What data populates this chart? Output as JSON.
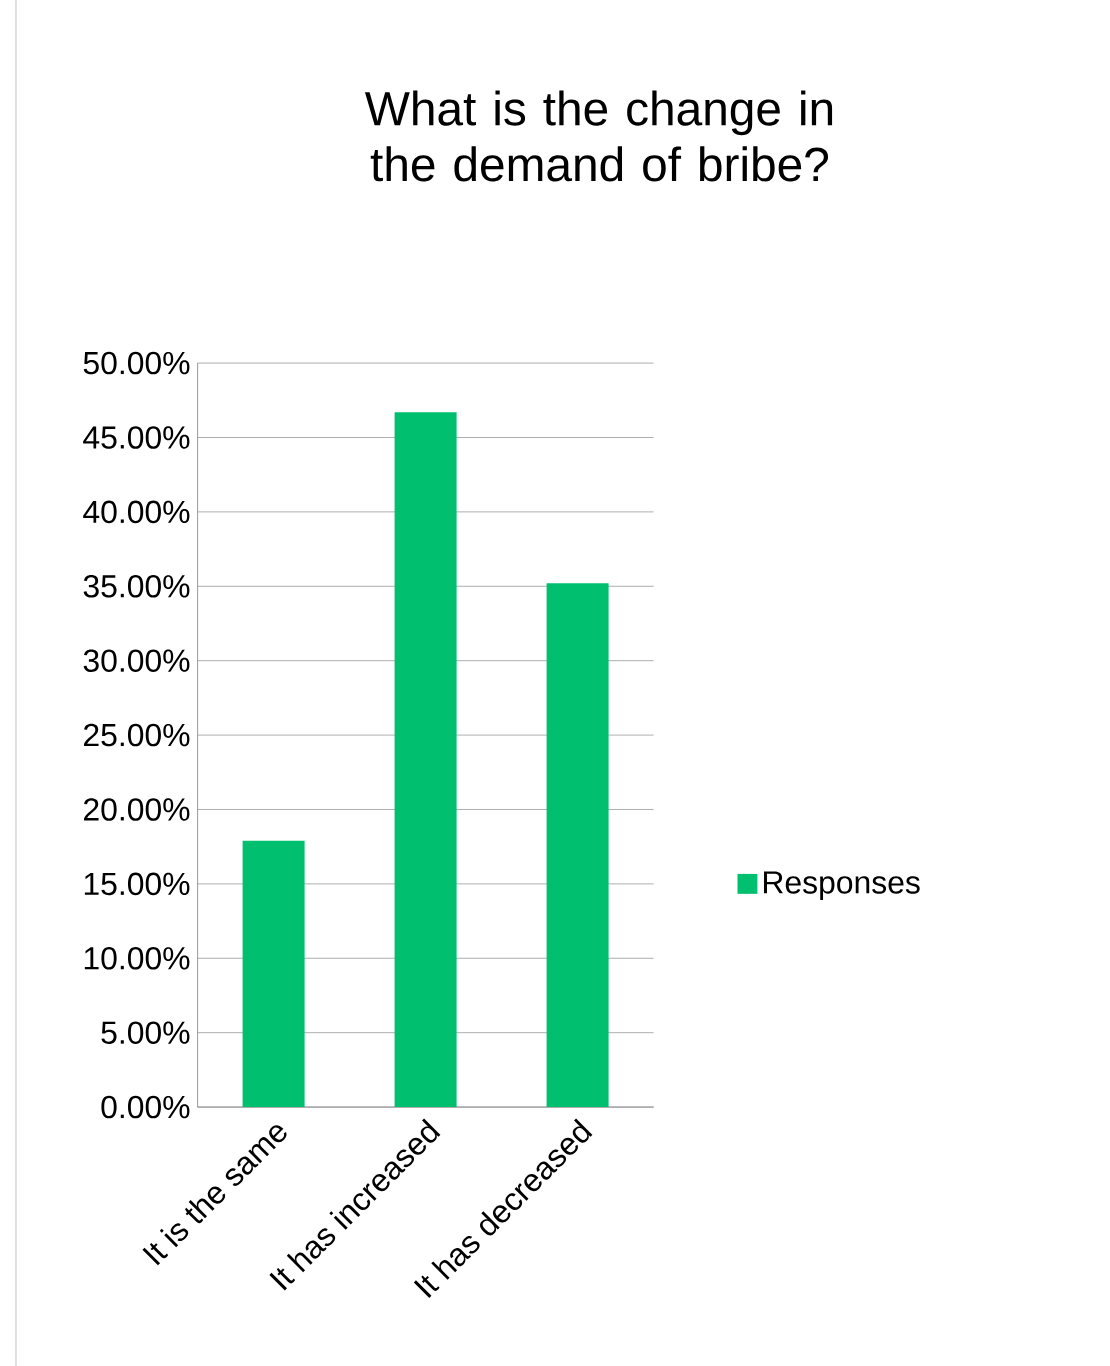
{
  "chart_data": {
    "type": "bar",
    "title": "What is the change in the demand of bribe?",
    "categories": [
      "It is the same",
      "It has increased",
      "It has decreased"
    ],
    "series": [
      {
        "name": "Responses",
        "color": "#00bf6f",
        "values": [
          17.9,
          46.7,
          35.2
        ]
      }
    ],
    "ylim": [
      0,
      50
    ],
    "yticks": [
      {
        "value": 0,
        "label": "0.00%"
      },
      {
        "value": 5,
        "label": "5.00%"
      },
      {
        "value": 10,
        "label": "10.00%"
      },
      {
        "value": 15,
        "label": "15.00%"
      },
      {
        "value": 20,
        "label": "20.00%"
      },
      {
        "value": 25,
        "label": "25.00%"
      },
      {
        "value": 30,
        "label": "30.00%"
      },
      {
        "value": 35,
        "label": "35.00%"
      },
      {
        "value": 40,
        "label": "40.00%"
      },
      {
        "value": 45,
        "label": "45.00%"
      },
      {
        "value": 50,
        "label": "50.00%"
      }
    ],
    "grid": "y",
    "legend": "right"
  }
}
